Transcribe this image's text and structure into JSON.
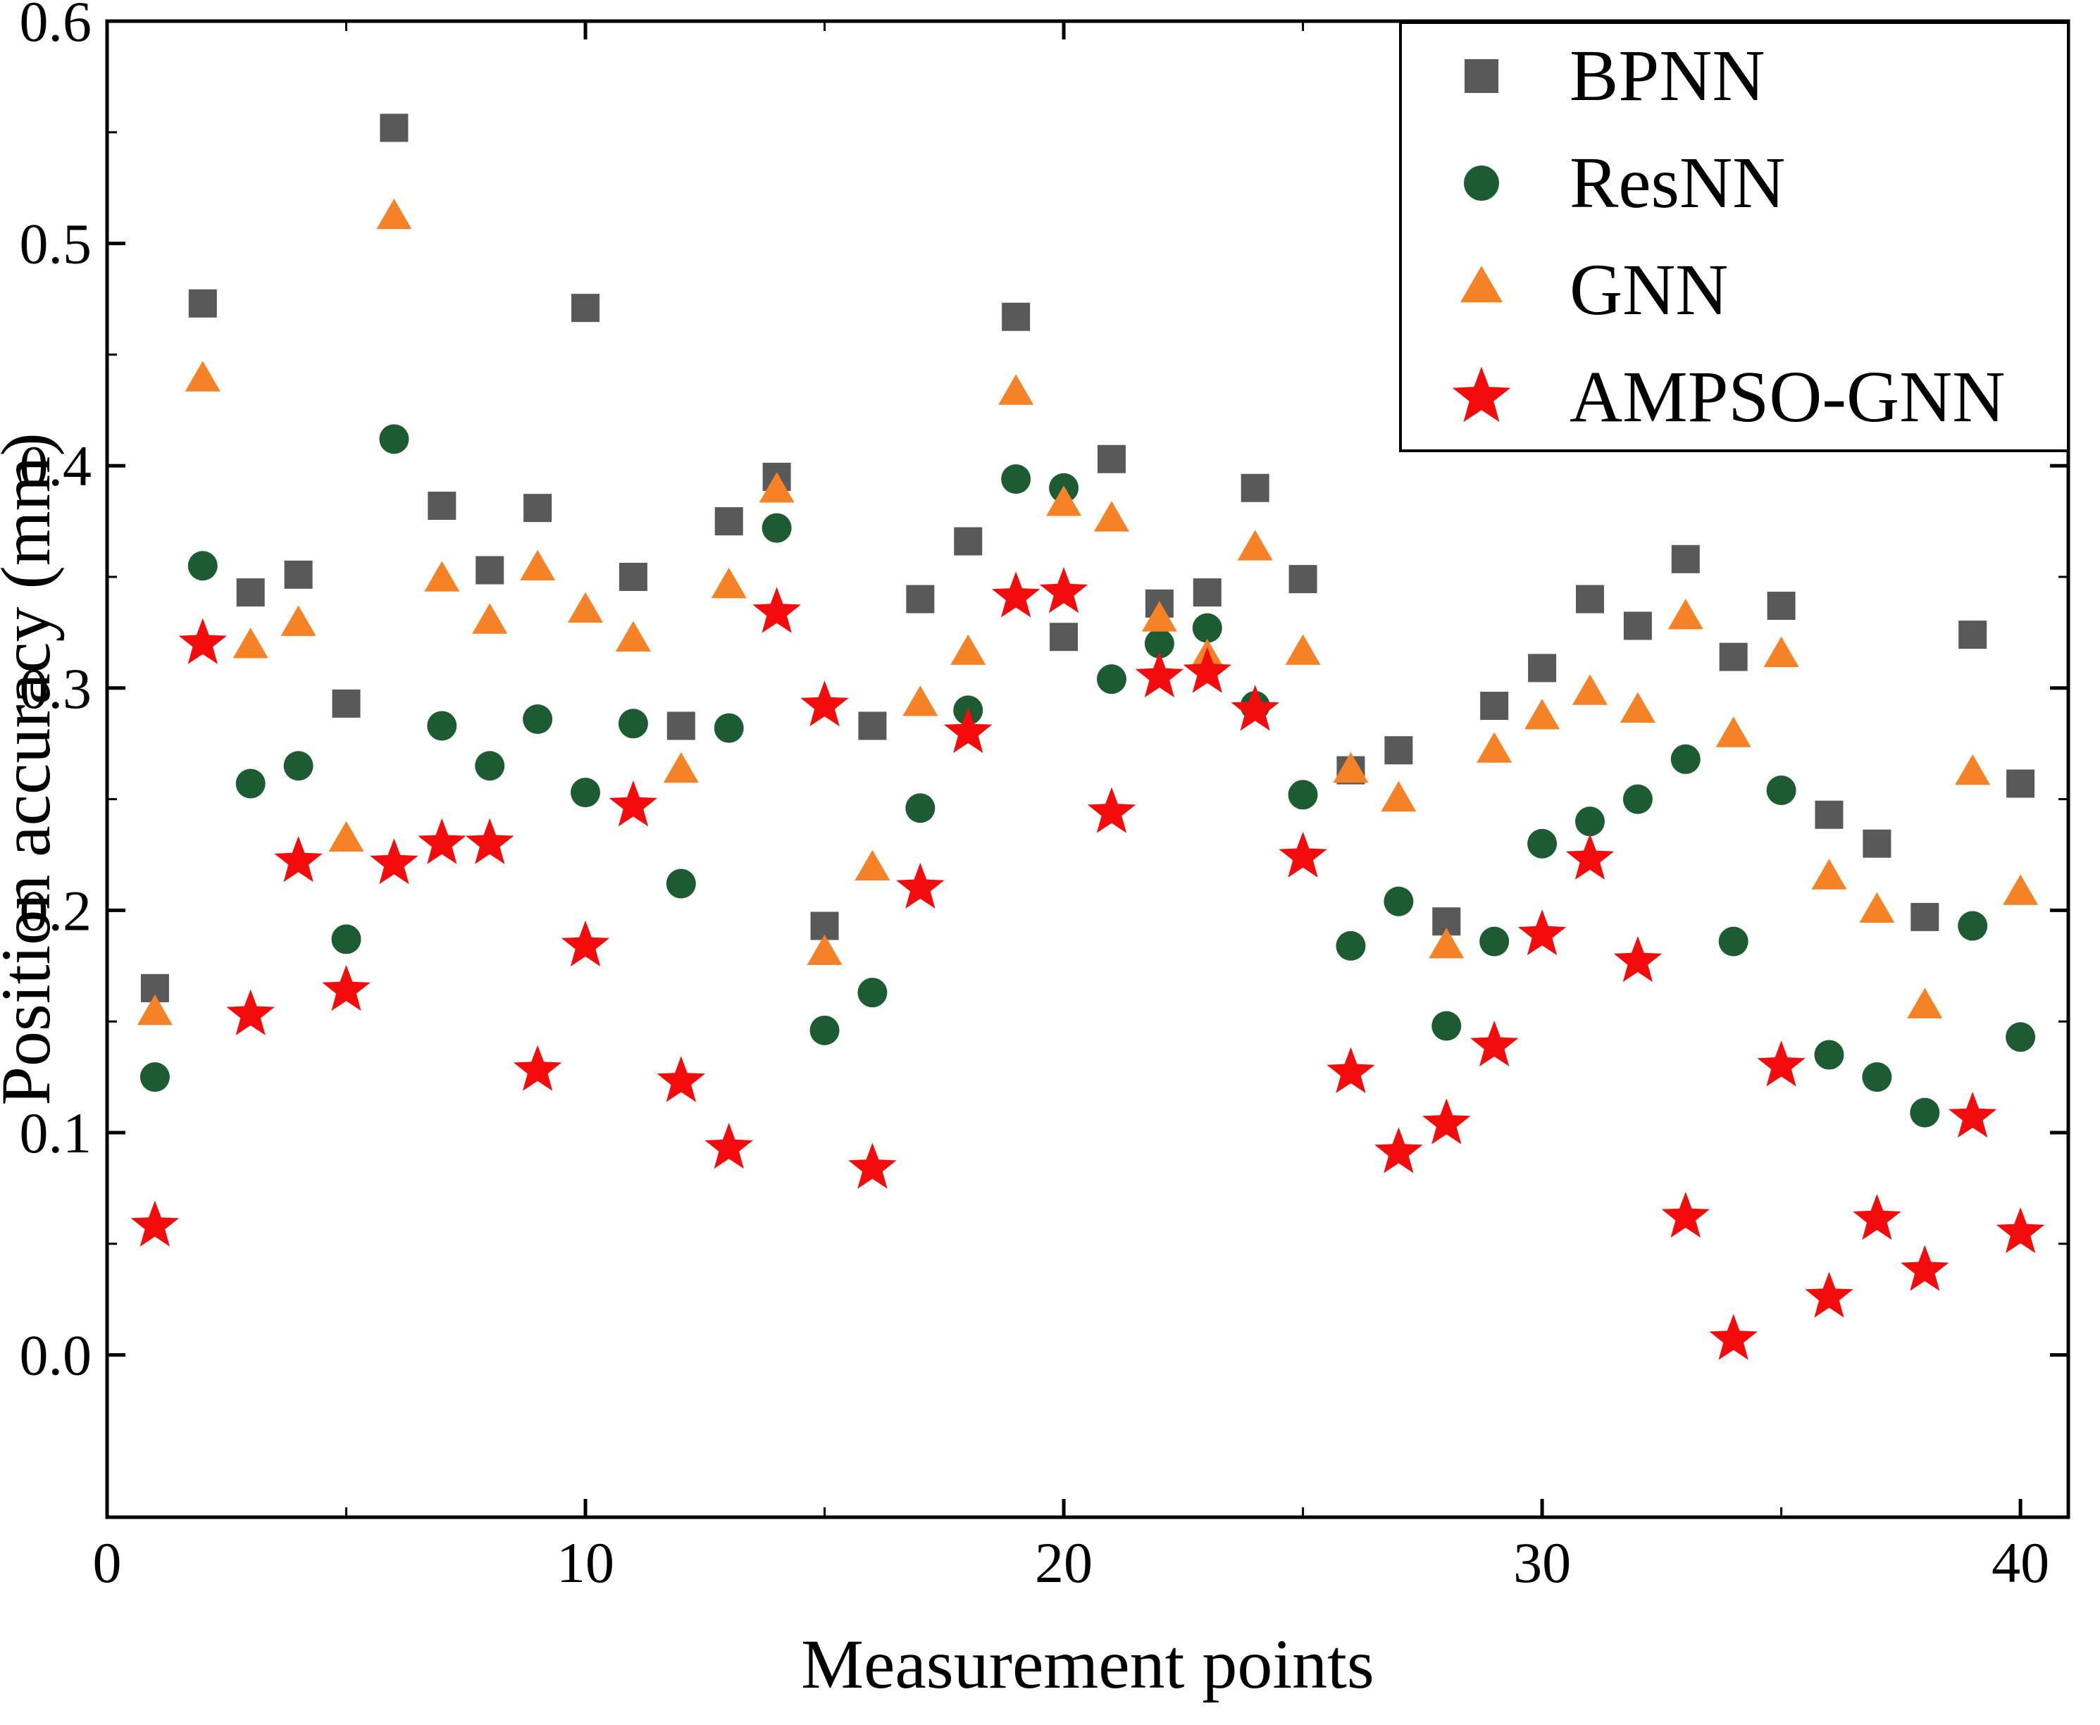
{
  "figure": {
    "background": "#ffffff",
    "frame_color": "#000000"
  },
  "chart_data": {
    "type": "scatter",
    "title": "",
    "xlabel": "Measurement points",
    "ylabel": "Position accuracy (mm)",
    "xlim": [
      0,
      41
    ],
    "ylim": [
      -0.073,
      0.6
    ],
    "grid": false,
    "legend_position": "top-right",
    "xticks": {
      "values": [
        0,
        10,
        20,
        30,
        40
      ],
      "labels": [
        "0",
        "10",
        "20",
        "30",
        "40"
      ],
      "minor": [
        5,
        15,
        25,
        35
      ]
    },
    "yticks": {
      "values": [
        0,
        0.1,
        0.2,
        0.3,
        0.4,
        0.5,
        0.6
      ],
      "labels": [
        "0.0",
        "0.1",
        "0.2",
        "0.3",
        "0.4",
        "0.5",
        "0.6"
      ],
      "minor": [
        0.05,
        0.15,
        0.25,
        0.35,
        0.45,
        0.55
      ]
    },
    "x": [
      1,
      2,
      3,
      4,
      5,
      6,
      7,
      8,
      9,
      10,
      11,
      12,
      13,
      14,
      15,
      16,
      17,
      18,
      19,
      20,
      21,
      22,
      23,
      24,
      25,
      26,
      27,
      28,
      29,
      30,
      31,
      32,
      33,
      34,
      35,
      36,
      37,
      38,
      39,
      40
    ],
    "series": [
      {
        "name": "BPNN",
        "marker": "square",
        "color": "#595959",
        "values": [
          0.165,
          0.473,
          0.343,
          0.351,
          0.293,
          0.552,
          0.382,
          0.353,
          0.381,
          0.471,
          0.35,
          0.283,
          0.375,
          0.395,
          0.193,
          0.283,
          0.34,
          0.366,
          0.467,
          0.323,
          0.403,
          0.338,
          0.343,
          0.39,
          0.349,
          0.263,
          0.272,
          0.195,
          0.292,
          0.309,
          0.34,
          0.328,
          0.358,
          0.314,
          0.337,
          0.243,
          0.23,
          0.197,
          0.324,
          0.257
        ]
      },
      {
        "name": "ResNN",
        "marker": "circle",
        "color": "#1d5b33",
        "values": [
          0.125,
          0.355,
          0.257,
          0.265,
          0.187,
          0.412,
          0.283,
          0.265,
          0.286,
          0.253,
          0.284,
          0.212,
          0.282,
          0.372,
          0.146,
          0.163,
          0.246,
          0.29,
          0.394,
          0.39,
          0.304,
          0.32,
          0.327,
          0.292,
          0.252,
          0.184,
          0.204,
          0.148,
          0.186,
          0.23,
          0.24,
          0.25,
          0.268,
          0.186,
          0.254,
          0.135,
          0.125,
          0.109,
          0.193,
          0.143
        ]
      },
      {
        "name": "GNN",
        "marker": "triangle",
        "color": "#f58227",
        "values": [
          0.153,
          0.438,
          0.318,
          0.328,
          0.231,
          0.511,
          0.348,
          0.329,
          0.353,
          0.334,
          0.321,
          0.262,
          0.345,
          0.388,
          0.18,
          0.218,
          0.292,
          0.315,
          0.432,
          0.382,
          0.375,
          0.33,
          0.313,
          0.362,
          0.315,
          0.262,
          0.249,
          0.183,
          0.271,
          0.286,
          0.297,
          0.289,
          0.331,
          0.278,
          0.314,
          0.214,
          0.199,
          0.156,
          0.261,
          0.207
        ]
      },
      {
        "name": "AMPSO-GNN",
        "marker": "star",
        "color": "#f40b0b",
        "values": [
          0.058,
          0.32,
          0.153,
          0.222,
          0.164,
          0.221,
          0.23,
          0.23,
          0.128,
          0.184,
          0.247,
          0.123,
          0.093,
          0.334,
          0.292,
          0.084,
          0.21,
          0.28,
          0.341,
          0.343,
          0.244,
          0.305,
          0.307,
          0.29,
          0.224,
          0.127,
          0.091,
          0.104,
          0.139,
          0.189,
          0.223,
          0.177,
          0.062,
          0.007,
          0.13,
          0.026,
          0.061,
          0.038,
          0.107,
          0.055
        ]
      }
    ]
  }
}
